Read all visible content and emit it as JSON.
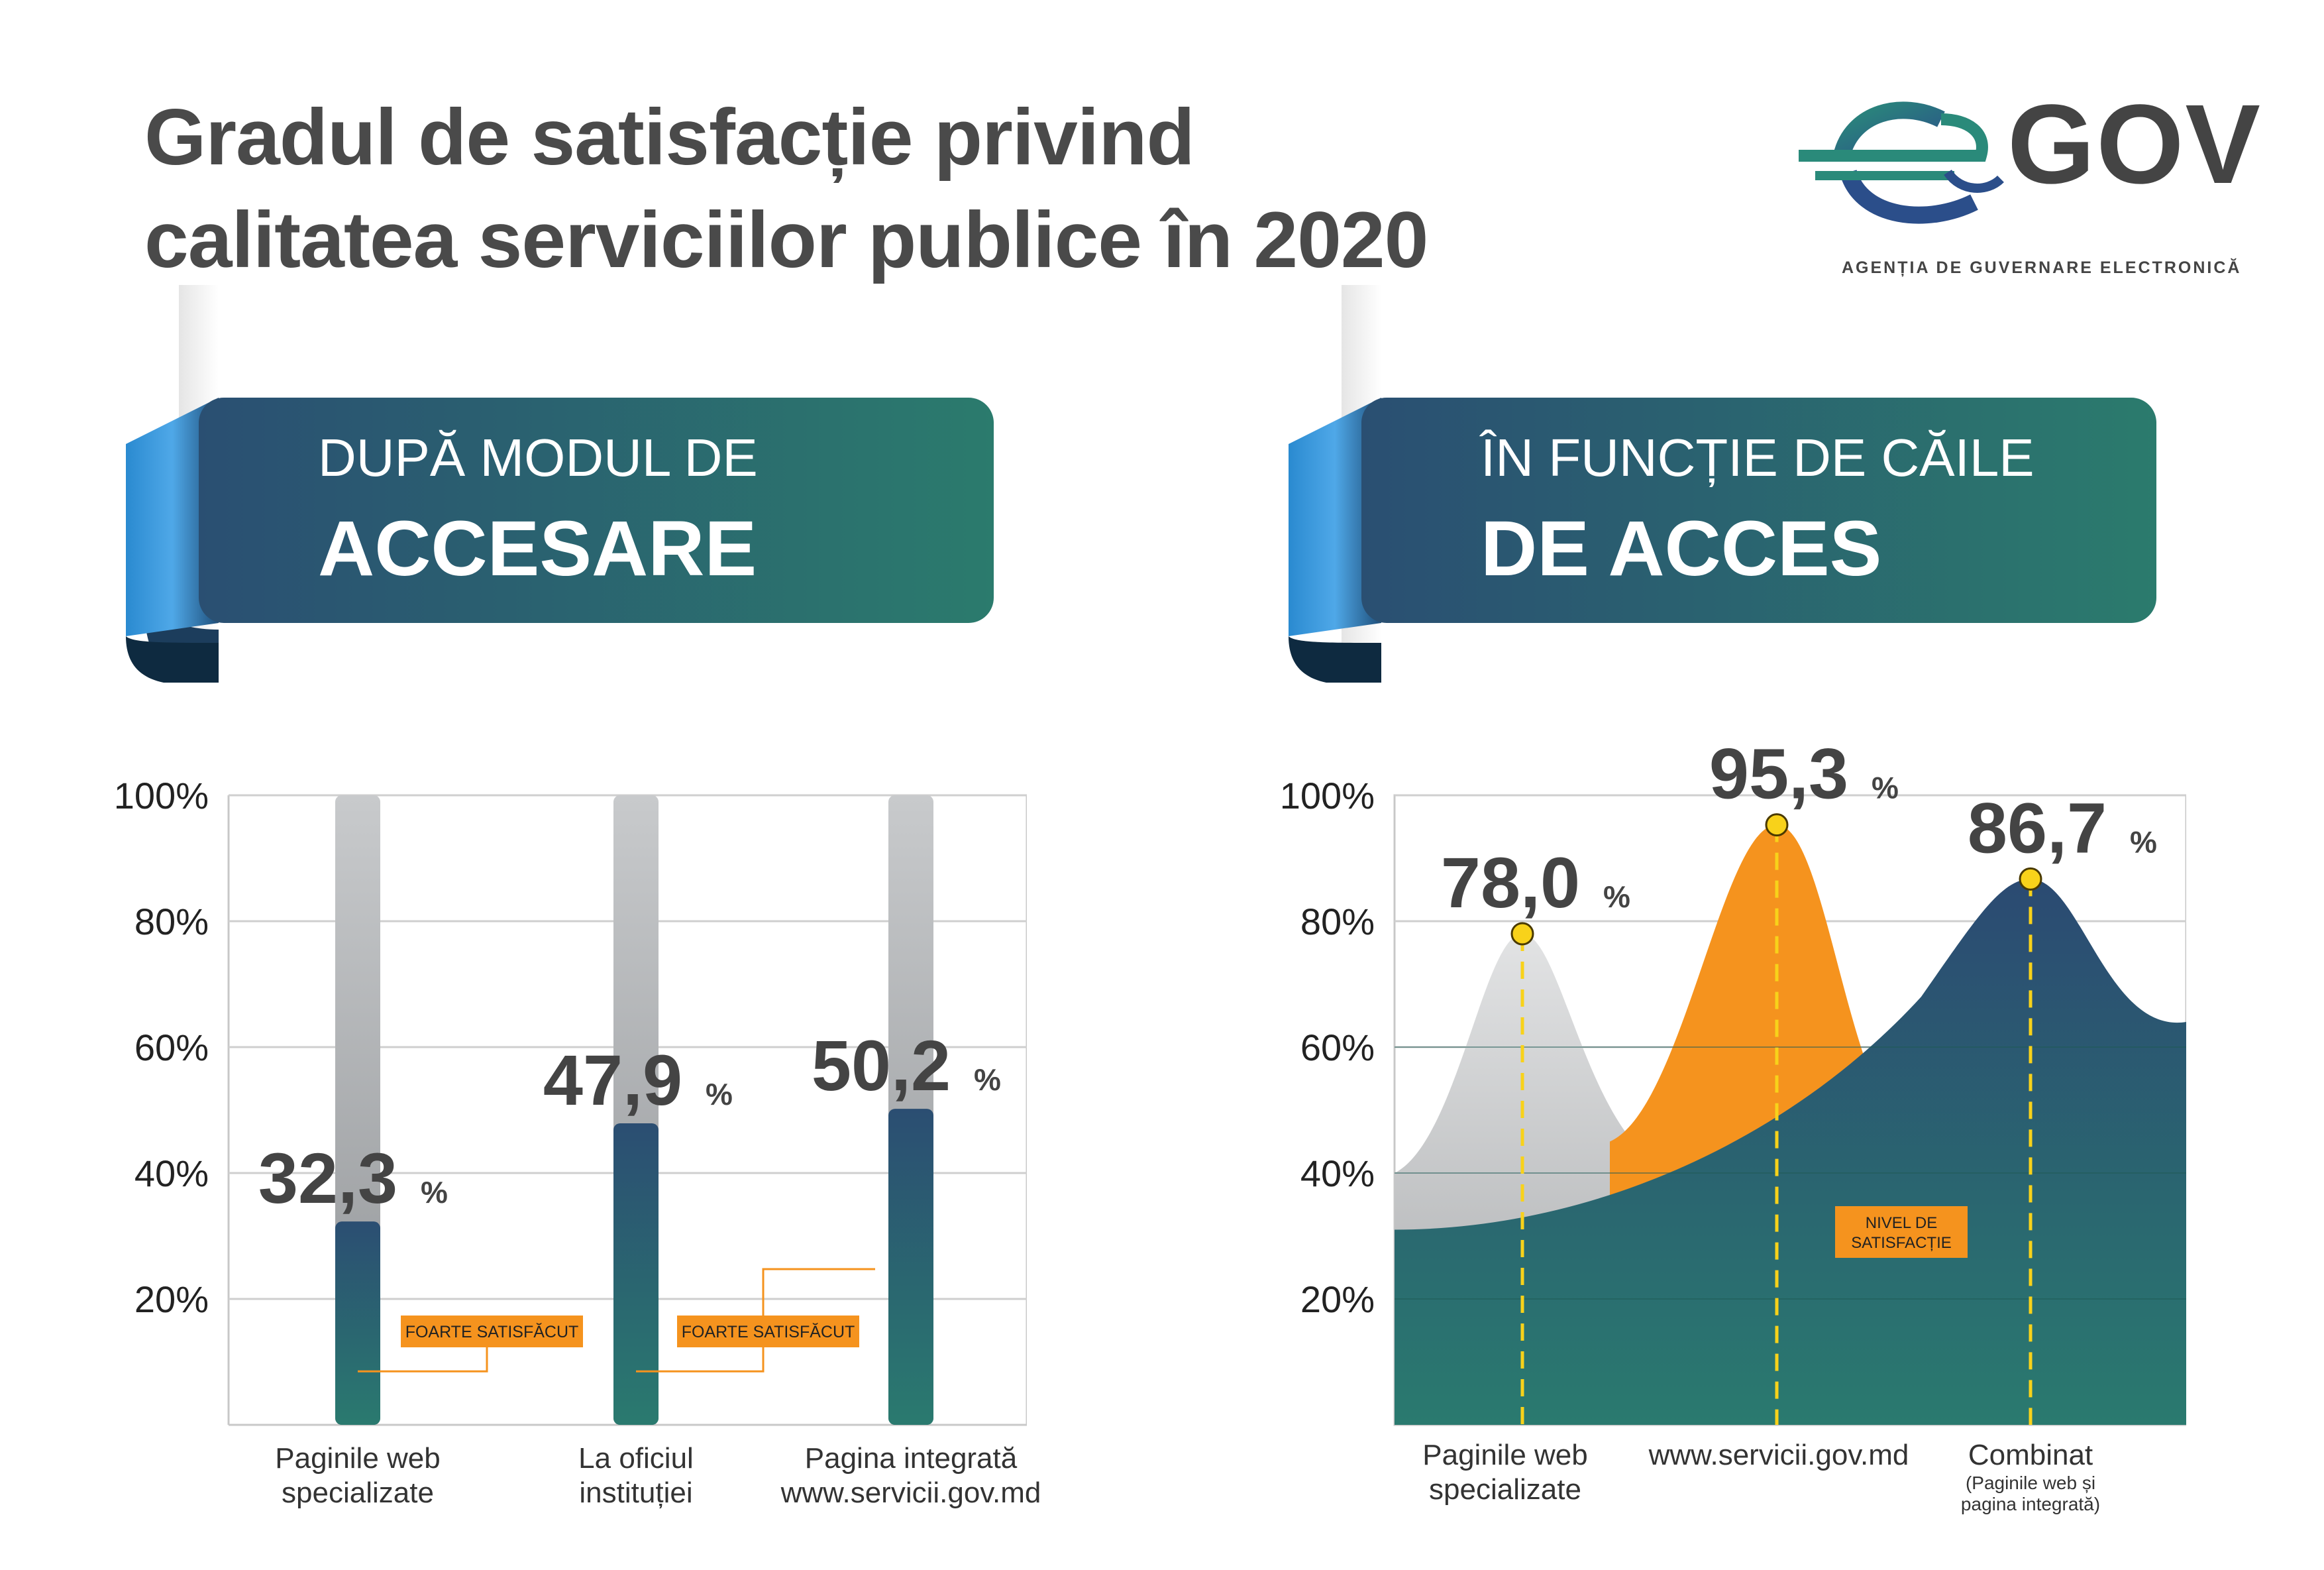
{
  "title": {
    "line1": "Gradul de satisfacție privind",
    "line2": "calitatea serviciilor publice în 2020"
  },
  "logo": {
    "word": "GOV",
    "subtitle": "AGENȚIA DE GUVERNARE ELECTRONICĂ"
  },
  "sections": {
    "left": {
      "line1": "DUPĂ MODUL DE",
      "line2": "ACCESARE"
    },
    "right": {
      "line1": "ÎN FUNCȚIE DE CĂILE",
      "line2": "DE ACCES"
    }
  },
  "colors": {
    "teal": "#2a7a6f",
    "navy": "#2b4e72",
    "orange": "#f5931e",
    "gray": "#c4c6c8",
    "marker": "#f8d21a"
  },
  "chart_data": [
    {
      "type": "bar",
      "title": "DUPĂ MODUL DE ACCESARE",
      "categories": [
        "Paginile web specializate",
        "La oficiul instituției",
        "Pagina integrată www.servicii.gov.md"
      ],
      "category_lines": [
        [
          "Paginile web",
          "specializate"
        ],
        [
          "La oficiul",
          "instituției"
        ],
        [
          "Pagina integrată",
          "www.servicii.gov.md"
        ]
      ],
      "values": [
        32.3,
        47.9,
        50.2
      ],
      "value_labels": [
        "32,3",
        "47,9",
        "50,2"
      ],
      "unit": "%",
      "ylim": [
        0,
        100
      ],
      "yticks": [
        "20%",
        "40%",
        "60%",
        "80%",
        "100%"
      ],
      "annotations": [
        "FOARTE SATISFĂCUT",
        "FOARTE SATISFĂCUT"
      ]
    },
    {
      "type": "area",
      "title": "ÎN FUNCȚIE DE CĂILE DE ACCES",
      "categories": [
        "Paginile web specializate",
        "www.servicii.gov.md",
        "Combinat"
      ],
      "category_lines": [
        [
          "Paginile web",
          "specializate"
        ],
        [
          "www.servicii.gov.md"
        ],
        [
          "Combinat"
        ]
      ],
      "category_note": [
        "(Paginile web și",
        "pagina integrată)"
      ],
      "series": [
        {
          "name": "Paginile web specializate",
          "peak": 78.0,
          "label": "78,0"
        },
        {
          "name": "www.servicii.gov.md",
          "peak": 95.3,
          "label": "95,3"
        },
        {
          "name": "Combinat",
          "peak": 86.7,
          "label": "86,7"
        }
      ],
      "unit": "%",
      "ylim": [
        0,
        100
      ],
      "yticks": [
        "20%",
        "40%",
        "60%",
        "80%",
        "100%"
      ],
      "legend": "NIVEL DE SATISFACȚIE"
    }
  ]
}
